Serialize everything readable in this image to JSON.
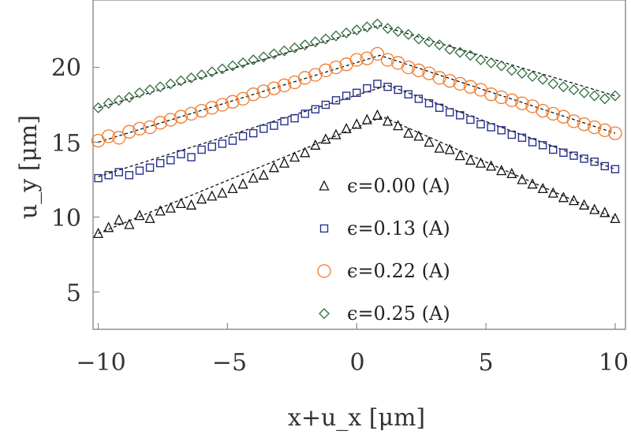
{
  "chart_data": {
    "type": "scatter",
    "xlabel": "x+u_x [μm]",
    "ylabel": "u_y [μm]",
    "xlim": [
      -10.2,
      10.4
    ],
    "ylim": [
      2.5,
      24.5
    ],
    "xticks": [
      -10,
      -5,
      0,
      5,
      10
    ],
    "yticks": [
      5,
      10,
      15,
      20
    ],
    "xtick_labels": [
      "−10",
      "−5",
      "0",
      "5",
      "10"
    ],
    "ytick_labels": [
      "5",
      "10",
      "15",
      "20"
    ],
    "grid": false,
    "legend_position": "center",
    "series": [
      {
        "name": "ϵ=0.00 (A)",
        "marker": "triangle",
        "color": "#111111",
        "peak_x": 1.0,
        "trend": [
          [
            -10,
            8.9
          ],
          [
            1.0,
            16.7
          ],
          [
            10,
            9.9
          ]
        ],
        "points": [
          [
            -10.0,
            8.9
          ],
          [
            -9.6,
            9.3
          ],
          [
            -9.2,
            9.8
          ],
          [
            -8.8,
            9.5
          ],
          [
            -8.4,
            10.1
          ],
          [
            -8.0,
            9.9
          ],
          [
            -7.6,
            10.4
          ],
          [
            -7.2,
            10.6
          ],
          [
            -6.8,
            10.9
          ],
          [
            -6.4,
            10.8
          ],
          [
            -6.0,
            11.2
          ],
          [
            -5.6,
            11.4
          ],
          [
            -5.2,
            11.6
          ],
          [
            -4.8,
            11.9
          ],
          [
            -4.4,
            12.2
          ],
          [
            -4.0,
            12.6
          ],
          [
            -3.6,
            12.8
          ],
          [
            -3.2,
            13.3
          ],
          [
            -2.8,
            13.6
          ],
          [
            -2.4,
            14.0
          ],
          [
            -2.0,
            14.3
          ],
          [
            -1.6,
            14.8
          ],
          [
            -1.2,
            15.2
          ],
          [
            -0.8,
            15.5
          ],
          [
            -0.4,
            15.9
          ],
          [
            0.0,
            16.2
          ],
          [
            0.4,
            16.5
          ],
          [
            0.8,
            16.8
          ],
          [
            1.2,
            16.4
          ],
          [
            1.6,
            16.1
          ],
          [
            2.0,
            15.6
          ],
          [
            2.4,
            15.4
          ],
          [
            2.8,
            15.0
          ],
          [
            3.2,
            14.6
          ],
          [
            3.6,
            14.5
          ],
          [
            4.0,
            14.1
          ],
          [
            4.4,
            13.8
          ],
          [
            4.8,
            13.6
          ],
          [
            5.2,
            13.4
          ],
          [
            5.6,
            13.1
          ],
          [
            6.0,
            12.9
          ],
          [
            6.4,
            12.5
          ],
          [
            6.8,
            12.2
          ],
          [
            7.2,
            11.9
          ],
          [
            7.6,
            11.6
          ],
          [
            8.0,
            11.3
          ],
          [
            8.4,
            11.1
          ],
          [
            8.8,
            10.8
          ],
          [
            9.2,
            10.5
          ],
          [
            9.6,
            10.3
          ],
          [
            10.0,
            9.9
          ]
        ]
      },
      {
        "name": "ϵ=0.13 (A)",
        "marker": "square",
        "color": "#27308f",
        "peak_x": 1.2,
        "trend": [
          [
            -10,
            12.7
          ],
          [
            1.2,
            18.8
          ],
          [
            10,
            13.2
          ]
        ],
        "points": [
          [
            -10.0,
            12.6
          ],
          [
            -9.6,
            12.8
          ],
          [
            -9.2,
            13.0
          ],
          [
            -8.8,
            12.8
          ],
          [
            -8.4,
            13.1
          ],
          [
            -8.0,
            13.3
          ],
          [
            -7.6,
            13.6
          ],
          [
            -7.2,
            13.8
          ],
          [
            -6.8,
            14.2
          ],
          [
            -6.4,
            14.0
          ],
          [
            -6.0,
            14.5
          ],
          [
            -5.6,
            14.7
          ],
          [
            -5.2,
            14.9
          ],
          [
            -4.8,
            15.1
          ],
          [
            -4.4,
            15.4
          ],
          [
            -4.0,
            15.6
          ],
          [
            -3.6,
            15.9
          ],
          [
            -3.2,
            16.1
          ],
          [
            -2.8,
            16.4
          ],
          [
            -2.4,
            16.6
          ],
          [
            -2.0,
            16.9
          ],
          [
            -1.6,
            17.2
          ],
          [
            -1.2,
            17.5
          ],
          [
            -0.8,
            17.8
          ],
          [
            -0.4,
            18.1
          ],
          [
            0.0,
            18.3
          ],
          [
            0.4,
            18.6
          ],
          [
            0.8,
            18.9
          ],
          [
            1.2,
            18.7
          ],
          [
            1.6,
            18.5
          ],
          [
            2.0,
            18.2
          ],
          [
            2.4,
            17.9
          ],
          [
            2.8,
            17.6
          ],
          [
            3.2,
            17.3
          ],
          [
            3.6,
            17.0
          ],
          [
            4.0,
            16.8
          ],
          [
            4.4,
            16.5
          ],
          [
            4.8,
            16.2
          ],
          [
            5.2,
            16.0
          ],
          [
            5.6,
            15.8
          ],
          [
            6.0,
            15.5
          ],
          [
            6.4,
            15.3
          ],
          [
            6.8,
            15.0
          ],
          [
            7.2,
            14.8
          ],
          [
            7.6,
            14.5
          ],
          [
            8.0,
            14.3
          ],
          [
            8.4,
            14.1
          ],
          [
            8.8,
            13.9
          ],
          [
            9.2,
            13.7
          ],
          [
            9.6,
            13.4
          ],
          [
            10.0,
            13.2
          ]
        ]
      },
      {
        "name": "ϵ=0.22 (A)",
        "marker": "circle",
        "color": "#ef7a2d",
        "peak_x": 0.9,
        "trend": [
          [
            -10,
            15.0
          ],
          [
            0.9,
            20.8
          ],
          [
            10,
            15.6
          ]
        ],
        "points": [
          [
            -10.0,
            15.1
          ],
          [
            -9.6,
            15.4
          ],
          [
            -9.2,
            15.3
          ],
          [
            -8.8,
            15.7
          ],
          [
            -8.4,
            15.9
          ],
          [
            -8.0,
            16.0
          ],
          [
            -7.6,
            16.3
          ],
          [
            -7.2,
            16.5
          ],
          [
            -6.8,
            16.7
          ],
          [
            -6.4,
            16.9
          ],
          [
            -6.0,
            17.1
          ],
          [
            -5.6,
            17.3
          ],
          [
            -5.2,
            17.5
          ],
          [
            -4.8,
            17.7
          ],
          [
            -4.4,
            17.9
          ],
          [
            -4.0,
            18.2
          ],
          [
            -3.6,
            18.4
          ],
          [
            -3.2,
            18.6
          ],
          [
            -2.8,
            18.8
          ],
          [
            -2.4,
            19.0
          ],
          [
            -2.0,
            19.3
          ],
          [
            -1.6,
            19.5
          ],
          [
            -1.2,
            19.8
          ],
          [
            -0.8,
            20.0
          ],
          [
            -0.4,
            20.2
          ],
          [
            0.0,
            20.5
          ],
          [
            0.4,
            20.6
          ],
          [
            0.8,
            20.9
          ],
          [
            1.2,
            20.5
          ],
          [
            1.6,
            20.3
          ],
          [
            2.0,
            20.0
          ],
          [
            2.4,
            19.8
          ],
          [
            2.8,
            19.6
          ],
          [
            3.2,
            19.3
          ],
          [
            3.6,
            19.1
          ],
          [
            4.0,
            18.9
          ],
          [
            4.4,
            18.7
          ],
          [
            4.8,
            18.5
          ],
          [
            5.2,
            18.2
          ],
          [
            5.6,
            18.0
          ],
          [
            6.0,
            17.8
          ],
          [
            6.4,
            17.6
          ],
          [
            6.8,
            17.4
          ],
          [
            7.2,
            17.1
          ],
          [
            7.6,
            16.9
          ],
          [
            8.0,
            16.7
          ],
          [
            8.4,
            16.4
          ],
          [
            8.8,
            16.2
          ],
          [
            9.2,
            16.0
          ],
          [
            9.6,
            15.8
          ],
          [
            10.0,
            15.6
          ]
        ]
      },
      {
        "name": "ϵ=0.25 (A)",
        "marker": "diamond",
        "color": "#2f6d3a",
        "peak_x": 0.9,
        "trend": [
          [
            -10,
            17.3
          ],
          [
            0.9,
            22.8
          ],
          [
            10,
            18.1
          ]
        ],
        "points": [
          [
            -10.0,
            17.3
          ],
          [
            -9.6,
            17.6
          ],
          [
            -9.2,
            17.8
          ],
          [
            -8.8,
            18.0
          ],
          [
            -8.4,
            18.3
          ],
          [
            -8.0,
            18.5
          ],
          [
            -7.6,
            18.7
          ],
          [
            -7.2,
            18.9
          ],
          [
            -6.8,
            19.1
          ],
          [
            -6.4,
            19.3
          ],
          [
            -6.0,
            19.5
          ],
          [
            -5.6,
            19.7
          ],
          [
            -5.2,
            19.9
          ],
          [
            -4.8,
            20.1
          ],
          [
            -4.4,
            20.3
          ],
          [
            -4.0,
            20.5
          ],
          [
            -3.6,
            20.7
          ],
          [
            -3.2,
            20.9
          ],
          [
            -2.8,
            21.1
          ],
          [
            -2.4,
            21.3
          ],
          [
            -2.0,
            21.5
          ],
          [
            -1.6,
            21.7
          ],
          [
            -1.2,
            21.9
          ],
          [
            -0.8,
            22.1
          ],
          [
            -0.4,
            22.3
          ],
          [
            0.0,
            22.5
          ],
          [
            0.4,
            22.7
          ],
          [
            0.8,
            22.9
          ],
          [
            1.2,
            22.6
          ],
          [
            1.6,
            22.4
          ],
          [
            2.0,
            22.2
          ],
          [
            2.4,
            21.9
          ],
          [
            2.8,
            21.7
          ],
          [
            3.2,
            21.5
          ],
          [
            3.6,
            21.2
          ],
          [
            4.0,
            21.0
          ],
          [
            4.4,
            20.8
          ],
          [
            4.8,
            20.5
          ],
          [
            5.2,
            20.3
          ],
          [
            5.6,
            20.1
          ],
          [
            6.0,
            19.8
          ],
          [
            6.4,
            19.6
          ],
          [
            6.8,
            19.4
          ],
          [
            7.2,
            19.2
          ],
          [
            7.6,
            18.9
          ],
          [
            8.0,
            18.7
          ],
          [
            8.4,
            18.5
          ],
          [
            8.8,
            18.3
          ],
          [
            9.2,
            18.1
          ],
          [
            9.6,
            17.9
          ],
          [
            10.0,
            18.1
          ]
        ]
      }
    ]
  }
}
